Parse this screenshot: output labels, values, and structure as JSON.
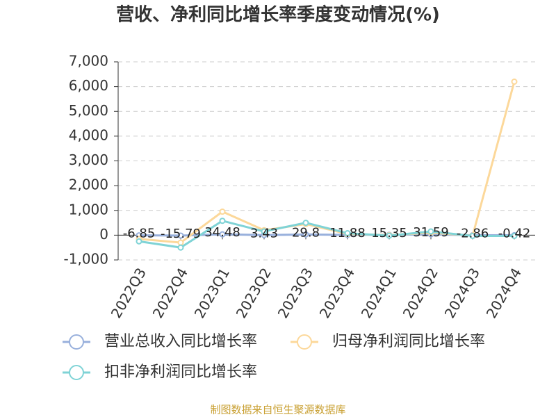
{
  "chart_data": {
    "type": "line",
    "title": "营收、净利同比增长率季度变动情况(%)",
    "source": "制图数据来自恒生聚源数据库",
    "categories": [
      "2022Q3",
      "2022Q4",
      "2023Q1",
      "2023Q2",
      "2023Q3",
      "2023Q4",
      "2024Q1",
      "2024Q2",
      "2024Q3",
      "2024Q4"
    ],
    "series": [
      {
        "name": "营业总收入同比增长率",
        "color": "#98b0dc",
        "values": [
          -6.85,
          -15.79,
          34.48,
          3.43,
          29.8,
          11.88,
          15.35,
          31.59,
          -2.86,
          -0.42
        ]
      },
      {
        "name": "归母净利润同比增长率",
        "color": "#fcd89a",
        "values": [
          -150,
          -300,
          950,
          200,
          450,
          50,
          0,
          100,
          -20,
          6200
        ]
      },
      {
        "name": "扣非净利润同比增长率",
        "color": "#7fd3d6",
        "values": [
          -250,
          -500,
          580,
          150,
          500,
          80,
          -20,
          150,
          -30,
          -30
        ]
      }
    ],
    "ylim": [
      -1000,
      7000
    ],
    "yticks": [
      {
        "value": -1000,
        "label": "-1,000"
      },
      0,
      {
        "value": 1000,
        "label": "1,000"
      },
      {
        "value": 2000,
        "label": "2,000"
      },
      {
        "value": 3000,
        "label": "3,000"
      },
      {
        "value": 4000,
        "label": "4,000"
      },
      {
        "value": 5000,
        "label": "5,000"
      },
      {
        "value": 6000,
        "label": "6,000"
      },
      {
        "value": 7000,
        "label": "7,000"
      }
    ],
    "grid": true
  }
}
